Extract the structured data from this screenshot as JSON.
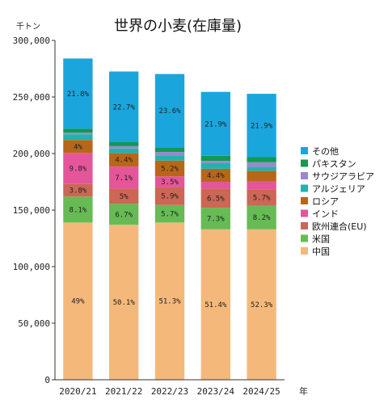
{
  "chart_data": {
    "type": "bar",
    "stacked": true,
    "title": "世界の小麦(在庫量)",
    "yunit": "千トン",
    "xunit": "年",
    "ylim": [
      0,
      300000
    ],
    "yticks": [
      0,
      50000,
      100000,
      150000,
      200000,
      250000,
      300000
    ],
    "ytick_labels": [
      "0",
      "50,000",
      "100,000",
      "150,000",
      "200,000",
      "250,000",
      "300,000"
    ],
    "categories": [
      "2020/21",
      "2021/22",
      "2022/23",
      "2023/24",
      "2024/25"
    ],
    "legend_position": "right",
    "grid": false,
    "series": [
      {
        "name": "中国",
        "color": "#f4b97a",
        "values": [
          139000,
          137000,
          139000,
          133000,
          133000
        ],
        "labels": [
          "49%",
          "50.1%",
          "51.3%",
          "51.4%",
          "52.3%"
        ]
      },
      {
        "name": "米国",
        "color": "#66bb55",
        "values": [
          23000,
          18500,
          15500,
          19000,
          20800
        ],
        "labels": [
          "8.1%",
          "6.7%",
          "5.7%",
          "7.3%",
          "8.2%"
        ]
      },
      {
        "name": "欧州連合(EU)",
        "color": "#cc6655",
        "values": [
          11000,
          13500,
          15800,
          17000,
          14500
        ],
        "labels": [
          "3.8%",
          "5%",
          "5.9%",
          "6.5%",
          "5.7%"
        ]
      },
      {
        "name": "インド",
        "color": "#e5559a",
        "values": [
          27500,
          19500,
          9500,
          6000,
          7000
        ],
        "labels": [
          "9.8%",
          "7.1%",
          "3.5%",
          "",
          ""
        ]
      },
      {
        "name": "ロシア",
        "color": "#b8661a",
        "values": [
          11500,
          12000,
          14000,
          11500,
          9500
        ],
        "labels": [
          "4%",
          "4.4%",
          "5.2%",
          "4.4%",
          ""
        ]
      },
      {
        "name": "アルジェリア",
        "color": "#20b3b0",
        "values": [
          5000,
          4000,
          4500,
          5000,
          3500
        ],
        "labels": [
          "",
          "",
          "",
          "",
          ""
        ]
      },
      {
        "name": "サウジアラビア",
        "color": "#9a88cc",
        "values": [
          1500,
          2000,
          3000,
          2000,
          4000
        ],
        "labels": [
          "",
          "",
          "",
          "",
          ""
        ]
      },
      {
        "name": "パキスタン",
        "color": "#119955",
        "values": [
          3500,
          3500,
          4000,
          4500,
          4500
        ],
        "labels": [
          "",
          "",
          "",
          "",
          ""
        ]
      },
      {
        "name": "その他",
        "color": "#1aa6dd",
        "values": [
          62000,
          62500,
          65000,
          56500,
          56000
        ],
        "labels": [
          "21.8%",
          "22.7%",
          "23.6%",
          "21.9%",
          "21.9%"
        ]
      }
    ]
  }
}
